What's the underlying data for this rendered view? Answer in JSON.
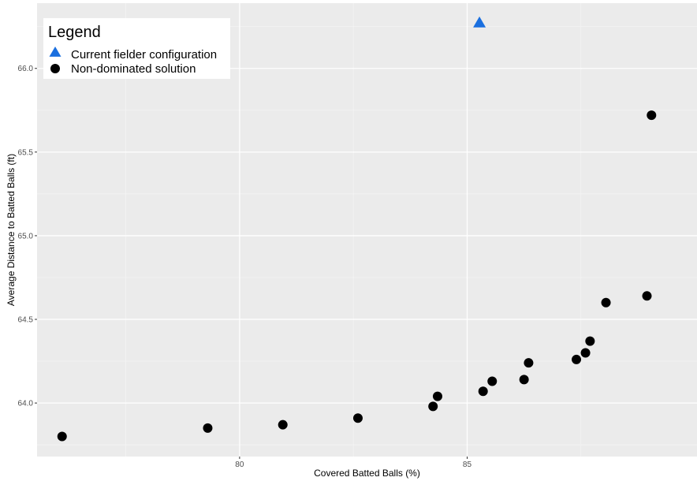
{
  "chart_data": {
    "type": "scatter",
    "title": "",
    "xlabel": "Covered Batted Balls (%)",
    "ylabel": "Average Distance to Batted Balls (ft)",
    "xlim": [
      75.55,
      90.05
    ],
    "ylim": [
      63.68,
      66.39
    ],
    "x_ticks": [
      80,
      85
    ],
    "x_tick_labels": [
      "80",
      "85"
    ],
    "y_ticks": [
      64.0,
      64.5,
      65.0,
      65.5,
      66.0
    ],
    "y_tick_labels": [
      "64.0",
      "64.5",
      "65.0",
      "65.5",
      "66.0"
    ],
    "grid": true,
    "legend": {
      "title": "Legend",
      "placement": "top-left",
      "entries": [
        {
          "label": "Current fielder configuration",
          "shape": "triangle",
          "color": "#1a6fdf"
        },
        {
          "label": "Non-dominated solution",
          "shape": "circle",
          "color": "#000000"
        }
      ]
    },
    "series": [
      {
        "name": "Current fielder configuration",
        "shape": "triangle",
        "color": "#1a6fdf",
        "points": [
          {
            "x": 85.27,
            "y": 66.27
          }
        ]
      },
      {
        "name": "Non-dominated solution",
        "shape": "circle",
        "color": "#000000",
        "points": [
          {
            "x": 76.1,
            "y": 63.8
          },
          {
            "x": 79.3,
            "y": 63.85
          },
          {
            "x": 80.95,
            "y": 63.87
          },
          {
            "x": 82.6,
            "y": 63.91
          },
          {
            "x": 84.25,
            "y": 63.98
          },
          {
            "x": 84.35,
            "y": 64.04
          },
          {
            "x": 85.35,
            "y": 64.07
          },
          {
            "x": 85.55,
            "y": 64.13
          },
          {
            "x": 86.25,
            "y": 64.14
          },
          {
            "x": 86.35,
            "y": 64.24
          },
          {
            "x": 87.4,
            "y": 64.26
          },
          {
            "x": 87.6,
            "y": 64.3
          },
          {
            "x": 87.7,
            "y": 64.37
          },
          {
            "x": 88.05,
            "y": 64.6
          },
          {
            "x": 88.95,
            "y": 64.64
          },
          {
            "x": 89.05,
            "y": 65.72
          }
        ]
      }
    ],
    "colors": {
      "panel_background": "#ebebeb",
      "grid_major": "#ffffff",
      "grid_minor": "#f5f5f5"
    }
  }
}
